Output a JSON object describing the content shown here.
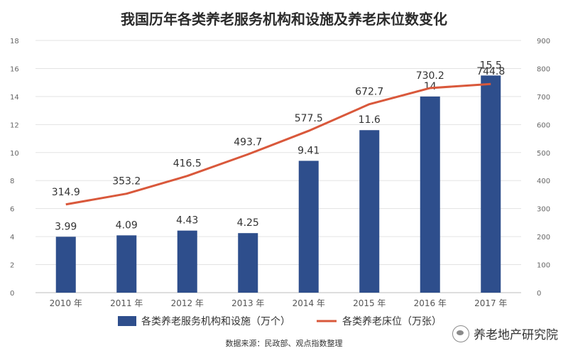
{
  "chart_data": {
    "type": "bar+line",
    "title": "我国历年各类养老服务机构和设施及养老床位数变化",
    "categories": [
      "2010 年",
      "2011 年",
      "2012 年",
      "2013 年",
      "2014 年",
      "2015 年",
      "2016 年",
      "2017 年"
    ],
    "bar_series": {
      "name": "各类养老服务机构和设施（万个）",
      "values": [
        3.99,
        4.09,
        4.43,
        4.25,
        9.41,
        11.6,
        14,
        15.5
      ],
      "labels": [
        "3.99",
        "4.09",
        "4.43",
        "4.25",
        "9.41",
        "11.6",
        "14",
        "15.5"
      ],
      "axis": "left",
      "color": "#2e4e8c"
    },
    "line_series": {
      "name": "各类养老床位（万张）",
      "values": [
        314.9,
        353.2,
        416.5,
        493.7,
        577.5,
        672.7,
        730.2,
        744.8
      ],
      "labels": [
        "314.9",
        "353.2",
        "416.5",
        "493.7",
        "577.5",
        "672.7",
        "730.2",
        "744.8"
      ],
      "axis": "right",
      "color": "#d9583b"
    },
    "left_axis": {
      "min": 0,
      "max": 18,
      "ticks": [
        "0",
        "2",
        "4",
        "6",
        "8",
        "10",
        "12",
        "14",
        "16",
        "18"
      ]
    },
    "right_axis": {
      "min": 0,
      "max": 900,
      "ticks": [
        "0",
        "100",
        "200",
        "300",
        "400",
        "500",
        "600",
        "700",
        "800",
        "900"
      ]
    },
    "grid": true,
    "legend_position": "bottom"
  },
  "source": "数据来源：民政部、观点指数整理",
  "watermark": "养老地产研究院"
}
